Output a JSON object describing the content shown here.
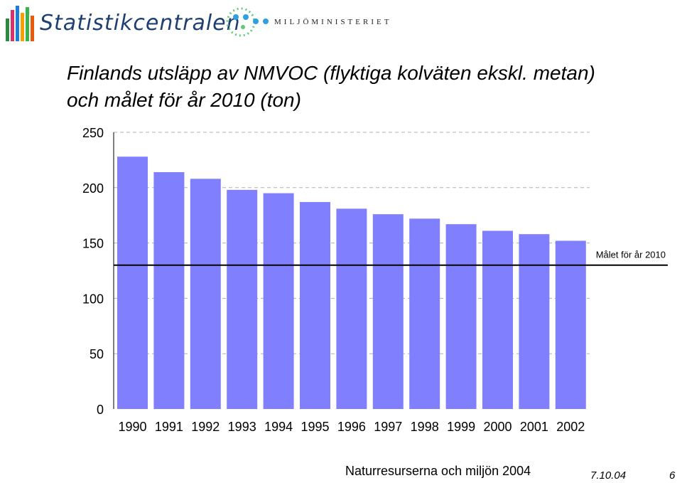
{
  "header": {
    "org_logo_text": "Statistikcentralen",
    "ministry_logo_text": "MILJÖMINISTERIET"
  },
  "chart_data": {
    "type": "bar",
    "title_line1": "Finlands utsläpp av NMVOC (flyktiga kolväten ekskl. metan)",
    "title_line2": "och målet för år 2010 (ton)",
    "xlabel": "",
    "ylabel": "",
    "ylim": [
      0,
      250
    ],
    "yticks": [
      "0",
      "50",
      "100",
      "150",
      "200",
      "250"
    ],
    "categories": [
      "1990",
      "1991",
      "1992",
      "1993",
      "1994",
      "1995",
      "1996",
      "1997",
      "1998",
      "1999",
      "2000",
      "2001",
      "2002"
    ],
    "values": [
      228,
      214,
      208,
      198,
      195,
      187,
      181,
      176,
      172,
      167,
      161,
      158,
      152
    ],
    "bar_color": "#8080ff",
    "grid": true,
    "target": {
      "value": 130,
      "label": "Målet för år 2010"
    }
  },
  "footer": {
    "source": "Naturresurserna och miljön 2004",
    "date": "7.10.04",
    "page": "6"
  }
}
